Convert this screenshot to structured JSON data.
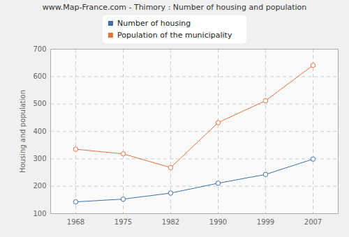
{
  "chart_data": {
    "type": "line",
    "title": "www.Map-France.com - Thimory : Number of housing and population",
    "y_label": "Housing and population",
    "categories": [
      "1968",
      "1975",
      "1982",
      "1990",
      "1999",
      "2007"
    ],
    "series": [
      {
        "name": "Number of housing",
        "color": "#3e6fa6",
        "marker": "circle",
        "values": [
          143,
          153,
          175,
          211,
          243,
          299
        ]
      },
      {
        "name": "Population of the municipality",
        "color": "#e8703a",
        "marker": "circle",
        "values": [
          335,
          318,
          268,
          432,
          512,
          641
        ]
      }
    ],
    "ylim": [
      100,
      700
    ],
    "yticks": [
      100,
      200,
      300,
      400,
      500,
      600,
      700
    ],
    "grid": true,
    "legend": "top"
  }
}
